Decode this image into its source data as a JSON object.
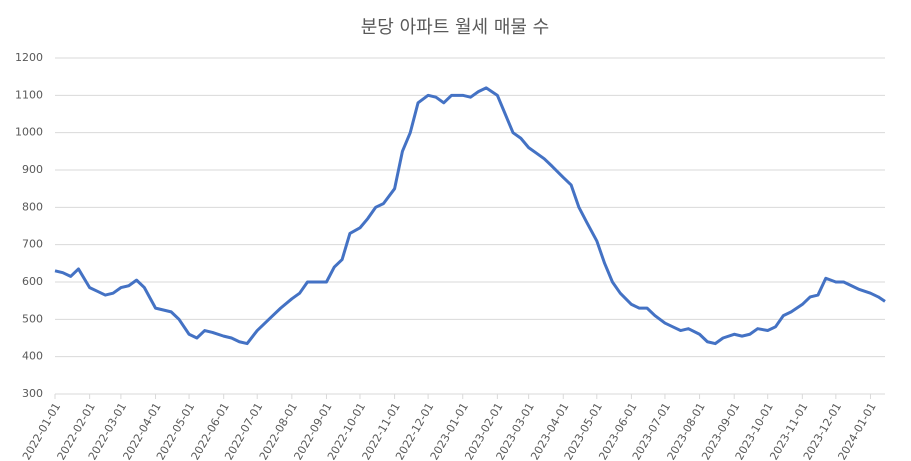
{
  "chart_data": {
    "type": "line",
    "title": "분당 아파트 월세 매물 수",
    "x": [
      "2022-01-01",
      "2022-01-08",
      "2022-01-15",
      "2022-01-22",
      "2022-02-01",
      "2022-02-08",
      "2022-02-15",
      "2022-02-22",
      "2022-03-01",
      "2022-03-08",
      "2022-03-15",
      "2022-03-22",
      "2022-04-01",
      "2022-04-08",
      "2022-04-15",
      "2022-04-22",
      "2022-05-01",
      "2022-05-08",
      "2022-05-15",
      "2022-05-22",
      "2022-06-01",
      "2022-06-08",
      "2022-06-15",
      "2022-06-22",
      "2022-07-01",
      "2022-07-08",
      "2022-07-15",
      "2022-07-22",
      "2022-08-01",
      "2022-08-08",
      "2022-08-15",
      "2022-08-22",
      "2022-09-01",
      "2022-09-08",
      "2022-09-15",
      "2022-09-22",
      "2022-10-01",
      "2022-10-08",
      "2022-10-15",
      "2022-10-22",
      "2022-11-01",
      "2022-11-08",
      "2022-11-15",
      "2022-11-22",
      "2022-12-01",
      "2022-12-08",
      "2022-12-15",
      "2022-12-22",
      "2023-01-01",
      "2023-01-08",
      "2023-01-15",
      "2023-01-22",
      "2023-02-01",
      "2023-02-08",
      "2023-02-15",
      "2023-02-22",
      "2023-03-01",
      "2023-03-08",
      "2023-03-15",
      "2023-03-22",
      "2023-04-01",
      "2023-04-08",
      "2023-04-15",
      "2023-04-22",
      "2023-05-01",
      "2023-05-08",
      "2023-05-15",
      "2023-05-22",
      "2023-06-01",
      "2023-06-08",
      "2023-06-15",
      "2023-06-22",
      "2023-07-01",
      "2023-07-08",
      "2023-07-15",
      "2023-07-22",
      "2023-08-01",
      "2023-08-08",
      "2023-08-15",
      "2023-08-22",
      "2023-09-01",
      "2023-09-08",
      "2023-09-15",
      "2023-09-22",
      "2023-10-01",
      "2023-10-08",
      "2023-10-15",
      "2023-10-22",
      "2023-11-01",
      "2023-11-08",
      "2023-11-15",
      "2023-11-22",
      "2023-12-01",
      "2023-12-08",
      "2023-12-15",
      "2023-12-22",
      "2024-01-01",
      "2024-01-08",
      "2024-01-14"
    ],
    "series": [
      {
        "name": "매물 수",
        "color": "#4472c4",
        "values": [
          630,
          625,
          615,
          635,
          585,
          575,
          565,
          570,
          585,
          590,
          605,
          585,
          530,
          525,
          520,
          500,
          460,
          450,
          470,
          465,
          455,
          450,
          440,
          435,
          470,
          490,
          510,
          530,
          555,
          570,
          600,
          600,
          600,
          640,
          660,
          730,
          745,
          770,
          800,
          810,
          850,
          950,
          1000,
          1080,
          1100,
          1095,
          1080,
          1100,
          1100,
          1095,
          1110,
          1120,
          1100,
          1050,
          1000,
          985,
          960,
          945,
          930,
          910,
          880,
          860,
          800,
          760,
          710,
          650,
          600,
          570,
          540,
          530,
          530,
          510,
          490,
          480,
          470,
          475,
          460,
          440,
          435,
          450,
          460,
          455,
          460,
          475,
          470,
          480,
          510,
          520,
          540,
          560,
          565,
          610,
          600,
          600,
          590,
          580,
          570,
          560,
          548
        ]
      }
    ],
    "xlim": [
      "2022-01-01",
      "2024-01-14"
    ],
    "xticks": [
      "2022-01-01",
      "2022-02-01",
      "2022-03-01",
      "2022-04-01",
      "2022-05-01",
      "2022-06-01",
      "2022-07-01",
      "2022-08-01",
      "2022-09-01",
      "2022-10-01",
      "2022-11-01",
      "2022-12-01",
      "2023-01-01",
      "2023-02-01",
      "2023-03-01",
      "2023-04-01",
      "2023-05-01",
      "2023-06-01",
      "2023-07-01",
      "2023-08-01",
      "2023-09-01",
      "2023-10-01",
      "2023-11-01",
      "2023-12-01",
      "2024-01-01"
    ],
    "ylim": [
      300,
      1200
    ],
    "yticks": [
      300,
      400,
      500,
      600,
      700,
      800,
      900,
      1000,
      1100,
      1200
    ],
    "grid": true
  }
}
